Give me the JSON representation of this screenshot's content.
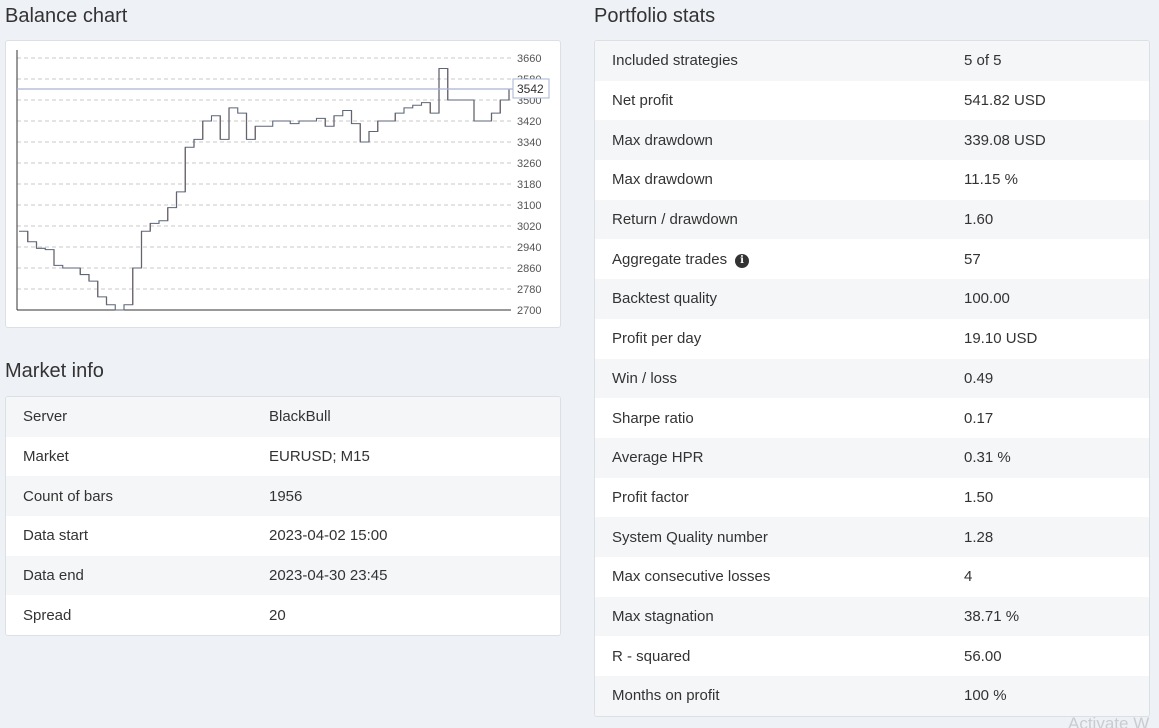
{
  "balance_chart": {
    "title": "Balance chart",
    "current_value_label": "3542"
  },
  "chart_data": {
    "type": "line",
    "title": "Balance chart",
    "y_ticks": [
      2700,
      2780,
      2860,
      2940,
      3020,
      3100,
      3180,
      3260,
      3340,
      3420,
      3500,
      3580,
      3660
    ],
    "ylim": [
      2700,
      3660
    ],
    "grid": true,
    "current_value": 3542,
    "series": [
      {
        "x": [
          0,
          1,
          2,
          3,
          4,
          5,
          6,
          7,
          8,
          9,
          10,
          11,
          12,
          13,
          14,
          15,
          16,
          17,
          18,
          19,
          20,
          21,
          22,
          23,
          24,
          25,
          26,
          27,
          28,
          29,
          30,
          31,
          32,
          33,
          34,
          35,
          36,
          37,
          38,
          39,
          40,
          41,
          42,
          43,
          44,
          45,
          46,
          47,
          48,
          49,
          50,
          51,
          52,
          53,
          54,
          55,
          56
        ],
        "y": [
          3000,
          2960,
          2935,
          2930,
          2870,
          2860,
          2860,
          2835,
          2810,
          2750,
          2720,
          2700,
          2720,
          2860,
          3000,
          3030,
          3040,
          3090,
          3150,
          3320,
          3350,
          3420,
          3440,
          3350,
          3470,
          3450,
          3350,
          3400,
          3400,
          3420,
          3420,
          3410,
          3420,
          3420,
          3430,
          3400,
          3440,
          3460,
          3410,
          3340,
          3380,
          3420,
          3420,
          3450,
          3470,
          3480,
          3490,
          3450,
          3620,
          3500,
          3500,
          3500,
          3420,
          3420,
          3450,
          3500,
          3542
        ]
      }
    ]
  },
  "market_info": {
    "title": "Market info",
    "rows": [
      {
        "label": "Server",
        "value": "BlackBull"
      },
      {
        "label": "Market",
        "value": "EURUSD; M15"
      },
      {
        "label": "Count of bars",
        "value": "1956"
      },
      {
        "label": "Data start",
        "value": "2023-04-02 15:00"
      },
      {
        "label": "Data end",
        "value": "2023-04-30 23:45"
      },
      {
        "label": "Spread",
        "value": "20"
      }
    ]
  },
  "portfolio_stats": {
    "title": "Portfolio stats",
    "info_icon": "info-circle-icon",
    "rows": [
      {
        "label": "Included strategies",
        "value": "5 of 5"
      },
      {
        "label": "Net profit",
        "value": "541.82 USD"
      },
      {
        "label": "Max drawdown",
        "value": "339.08 USD"
      },
      {
        "label": "Max drawdown",
        "value": "11.15 %"
      },
      {
        "label": "Return / drawdown",
        "value": "1.60"
      },
      {
        "label": "Aggregate trades",
        "value": "57",
        "info": true
      },
      {
        "label": "Backtest quality",
        "value": "100.00"
      },
      {
        "label": "Profit per day",
        "value": "19.10 USD"
      },
      {
        "label": "Win / loss",
        "value": "0.49"
      },
      {
        "label": "Sharpe ratio",
        "value": "0.17"
      },
      {
        "label": "Average HPR",
        "value": "0.31 %"
      },
      {
        "label": "Profit factor",
        "value": "1.50"
      },
      {
        "label": "System Quality number",
        "value": "1.28"
      },
      {
        "label": "Max consecutive losses",
        "value": "4"
      },
      {
        "label": "Max stagnation",
        "value": "38.71 %"
      },
      {
        "label": "R - squared",
        "value": "56.00"
      },
      {
        "label": "Months on profit",
        "value": "100 %"
      }
    ]
  },
  "watermark": "Activate W"
}
